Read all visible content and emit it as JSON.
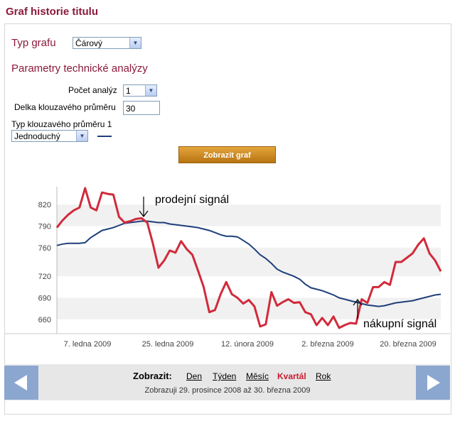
{
  "page_title": "Graf historie titulu",
  "chart_type": {
    "label": "Typ grafu",
    "selected": "Čárový"
  },
  "tech_analysis": {
    "title": "Parametry technické analýzy",
    "count_label": "Počet analýz",
    "count_value": "1",
    "ma_length_label": "Delka klouzavého průměru",
    "ma_length_value": "30",
    "ma_type_label": "Typ klouzavého průměru 1",
    "ma_type_value": "Jednoduchý",
    "ma_line_color": "#1f3f7a"
  },
  "submit_label": "Zobrazit graf",
  "chart_data": {
    "type": "line",
    "x_tick_labels": [
      "7. ledna 2009",
      "25. ledna 2009",
      "12. února 2009",
      "2. března 2009",
      "20. března 2009"
    ],
    "y_ticks": [
      660,
      690,
      720,
      760,
      790,
      820
    ],
    "ylim": [
      640,
      845
    ],
    "grid": "alternating bands",
    "annotations": [
      "prodejní signál",
      "nákupní signál"
    ],
    "series": [
      {
        "color": "#d12a3a",
        "values": [
          788,
          798,
          806,
          812,
          816,
          843,
          816,
          812,
          837,
          835,
          834,
          803,
          795,
          797,
          800,
          801,
          795,
          766,
          732,
          742,
          756,
          753,
          769,
          758,
          750,
          728,
          705,
          670,
          673,
          695,
          712,
          695,
          690,
          682,
          687,
          678,
          650,
          653,
          698,
          679,
          684,
          688,
          683,
          684,
          670,
          667,
          652,
          662,
          652,
          664,
          648,
          652,
          655,
          654,
          688,
          683,
          705,
          705,
          712,
          708,
          740,
          740,
          746,
          752,
          764,
          773,
          752,
          742,
          727
        ]
      },
      {
        "color": "#1f3f7a",
        "values": [
          763,
          765,
          766,
          766,
          766,
          767,
          774,
          779,
          784,
          786,
          788,
          791,
          794,
          795,
          796,
          797,
          797,
          796,
          795,
          795,
          793,
          792,
          791,
          790,
          789,
          788,
          786,
          784,
          781,
          778,
          776,
          776,
          775,
          770,
          765,
          758,
          750,
          745,
          738,
          730,
          726,
          723,
          720,
          716,
          709,
          704,
          702,
          700,
          697,
          694,
          690,
          688,
          686,
          684,
          682,
          680,
          679,
          678,
          679,
          681,
          683,
          684,
          685,
          686,
          688,
          690,
          692,
          694,
          695
        ]
      }
    ]
  },
  "footer": {
    "zobrazit_label": "Zobrazit:",
    "links": [
      "Den",
      "Týden",
      "Měsíc",
      "Kvartál",
      "Rok"
    ],
    "active_link": "Kvartál",
    "range_text": "Zobrazuji 29. prosince 2008 až 30. března 2009",
    "prev_icon": "arrow-left-icon",
    "next_icon": "arrow-right-icon"
  }
}
